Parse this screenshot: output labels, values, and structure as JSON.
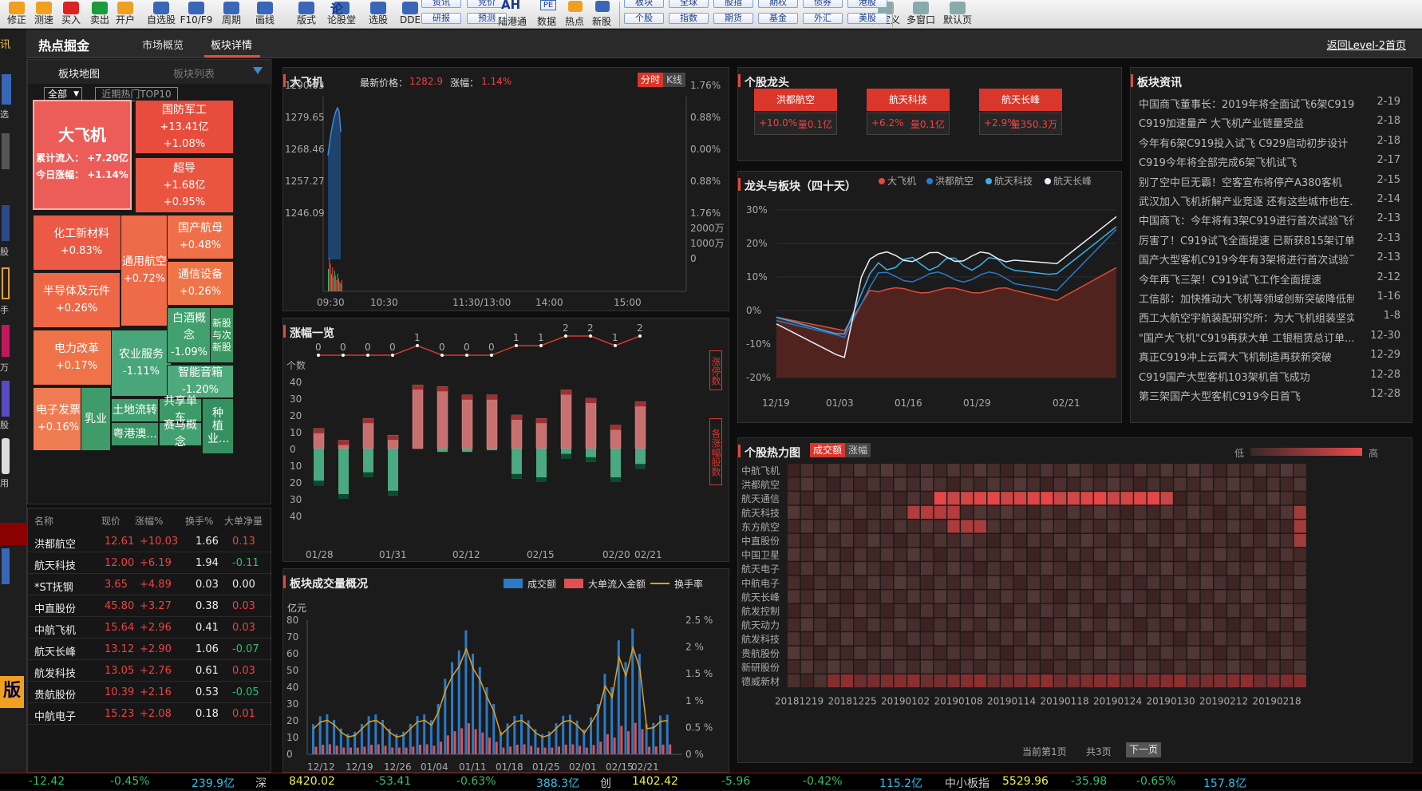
{
  "toolbar": {
    "items": [
      "修正",
      "测速",
      "买入",
      "卖出",
      "开户",
      "自选股",
      "F10/F9",
      "周期",
      "画线",
      "版式",
      "论股堂",
      "选股",
      "DDE",
      "研报",
      "预测",
      "陆港通",
      "数据",
      "热点",
      "新股",
      "个股",
      "指数",
      "期货",
      "基金",
      "外汇",
      "美股",
      "自定义",
      "多窗口",
      "默认页"
    ],
    "top_row": [
      "资讯",
      "竞价",
      "板块",
      "全球",
      "股指",
      "期权",
      "债券",
      "港股"
    ],
    "ah_label": "AH",
    "pe_label": "PE",
    "lun_label": "论"
  },
  "left_strip": [
    "讯",
    "选",
    "股",
    "手",
    "万",
    "股",
    "用",
    "版"
  ],
  "header": {
    "title": "热点掘金",
    "tabs": [
      "市场概览",
      "板块详情"
    ],
    "active_tab": "板块详情",
    "back_link": "返回Level-2首页"
  },
  "sector_map": {
    "tabs": [
      "板块地图",
      "板块列表"
    ],
    "filter_all": "全部",
    "filter_hot": "近期热门TOP10",
    "tiles": [
      {
        "name": "大飞机",
        "l1": "累计流入：  +7.20亿",
        "l2": "今日涨幅：  +1.14%"
      },
      {
        "name": "国防军工",
        "l1": "+13.41亿",
        "l2": "+1.08%"
      },
      {
        "name": "超导",
        "l1": "+1.68亿",
        "l2": "+0.95%"
      },
      {
        "name": "化工新材料",
        "l1": "+0.83%"
      },
      {
        "name": "通用航空",
        "l1": "+0.72%"
      },
      {
        "name": "国产航母",
        "l1": "+0.48%"
      },
      {
        "name": "通信设备",
        "l1": "+0.26%"
      },
      {
        "name": "半导体及元件",
        "l1": "+0.26%"
      },
      {
        "name": "电力改革",
        "l1": "+0.17%"
      },
      {
        "name": "农业服务",
        "l1": "-1.11%"
      },
      {
        "name": "白酒概念",
        "l1": "-1.09%"
      },
      {
        "name": "新股与次新股",
        "l1": ""
      },
      {
        "name": "智能音箱",
        "l1": "-1.20%"
      },
      {
        "name": "电子发票",
        "l1": "+0.16%"
      },
      {
        "name": "乳业",
        "l1": ""
      },
      {
        "name": "土地流转",
        "l1": ""
      },
      {
        "name": "共享单车",
        "l1": ""
      },
      {
        "name": "种植业...",
        "l1": ""
      },
      {
        "name": "粤港澳...",
        "l1": ""
      },
      {
        "name": "赛马概念",
        "l1": ""
      }
    ]
  },
  "stock_table": {
    "headers": [
      "名称",
      "现价",
      "涨幅%",
      "换手%",
      "大单净量"
    ],
    "rows": [
      [
        "洪都航空",
        "12.61",
        "+10.03",
        "1.66",
        "0.13"
      ],
      [
        "航天科技",
        "12.00",
        "+6.19",
        "1.94",
        "-0.11"
      ],
      [
        "*ST抚钢",
        "3.65",
        "+4.89",
        "0.03",
        "0.00"
      ],
      [
        "中直股份",
        "45.80",
        "+3.27",
        "0.38",
        "0.03"
      ],
      [
        "中航飞机",
        "15.64",
        "+2.96",
        "0.41",
        "0.03"
      ],
      [
        "航天长峰",
        "13.12",
        "+2.90",
        "1.06",
        "-0.07"
      ],
      [
        "航发科技",
        "13.05",
        "+2.76",
        "0.61",
        "0.03"
      ],
      [
        "贵航股份",
        "10.39",
        "+2.16",
        "0.53",
        "-0.05"
      ],
      [
        "中航电子",
        "15.23",
        "+2.08",
        "0.18",
        "0.01"
      ]
    ]
  },
  "intraday": {
    "name": "大飞机",
    "price_label": "最新价格：",
    "price": "1282.9",
    "chg_label": "涨幅：",
    "chg": "1.14%",
    "tabs": [
      "分时",
      "K线"
    ],
    "y_left": [
      "1290.83",
      "1279.65",
      "1268.46",
      "1257.27",
      "1246.09"
    ],
    "y_right": [
      "1.76%",
      "0.88%",
      "0.00%",
      "0.88%",
      "1.76%"
    ],
    "vol_labels": [
      "2000万",
      "1000万",
      "0"
    ],
    "x": [
      "09:30",
      "10:30",
      "11:30/13:00",
      "14:00",
      "15:00"
    ]
  },
  "rise_chart": {
    "title": "涨幅一览",
    "ylabel": "个数",
    "side1": "涨停数",
    "side2": "各涨幅股数",
    "limit_counts": [
      0,
      0,
      0,
      0,
      1,
      0,
      0,
      0,
      1,
      1,
      2,
      2,
      1,
      2
    ],
    "up": [
      12,
      5,
      18,
      8,
      38,
      37,
      32,
      32,
      20,
      18,
      35,
      30,
      14,
      28
    ],
    "down": [
      -22,
      -30,
      -17,
      -28,
      0,
      -2,
      -2,
      -1,
      -18,
      -20,
      -6,
      -8,
      -20,
      -12
    ],
    "yticks": [
      "40",
      "30",
      "20",
      "10",
      "0",
      "10",
      "20",
      "30",
      "40"
    ],
    "x": [
      "01/28",
      "01/31",
      "02/12",
      "02/15",
      "02/20",
      "02/21"
    ]
  },
  "volume_chart": {
    "title": "板块成交量概况",
    "unit": "亿元",
    "legend": [
      "成交额",
      "大单流入金额",
      "换手率"
    ],
    "yticks": [
      "80",
      "70",
      "60",
      "50",
      "40",
      "30",
      "20",
      "10",
      "0"
    ],
    "y2": [
      "2.5 %",
      "2 %",
      "1.5 %",
      "1 %",
      "0.5 %",
      "0 %"
    ],
    "x": [
      "12/12",
      "12/19",
      "12/26",
      "01/04",
      "01/11",
      "01/18",
      "01/25",
      "02/01",
      "02/15",
      "02/21"
    ]
  },
  "leaders": {
    "title": "个股龙头",
    "items": [
      {
        "name": "洪都航空",
        "chg": "+10.0%",
        "vol": "量0.1亿"
      },
      {
        "name": "航天科技",
        "chg": "+6.2%",
        "vol": "量0.1亿"
      },
      {
        "name": "航天长峰",
        "chg": "+2.9%",
        "vol": "量350.3万"
      }
    ]
  },
  "compare_chart": {
    "title": "龙头与板块（四十天）",
    "legend": [
      "大飞机",
      "洪都航空",
      "航天科技",
      "航天长峰"
    ],
    "yticks": [
      "30%",
      "20%",
      "10%",
      "0%",
      "-10%",
      "-20%"
    ],
    "x": [
      "12/19",
      "01/03",
      "01/16",
      "01/29",
      "02/21"
    ]
  },
  "news": {
    "title": "板块资讯",
    "items": [
      [
        "中国商飞董事长：2019年将全面试飞6架C919...",
        "2-19"
      ],
      [
        "C919加速量产 大飞机产业链量受益",
        "2-18"
      ],
      [
        "今年有6架C919投入试飞 C929启动初步设计",
        "2-18"
      ],
      [
        "C919今年将全部完成6架飞机试飞",
        "2-17"
      ],
      [
        "别了空中巨无霸！空客宣布将停产A380客机",
        "2-15"
      ],
      [
        "武汉加入飞机折解产业竞逐 还有这些城市也在...",
        "2-14"
      ],
      [
        "中国商飞：今年将有3架C919进行首次试验飞行...",
        "2-13"
      ],
      [
        "厉害了！C919试飞全面提速 已新获815架订单...",
        "2-13"
      ],
      [
        "国产大型客机C919今年有3架将进行首次试验飞...",
        "2-13"
      ],
      [
        "今年再飞三架！C919试飞工作全面提速",
        "2-12"
      ],
      [
        "工信部：加快推动大飞机等领域创新突破降低制...",
        "1-16"
      ],
      [
        "西工大航空宇航装配研究所：为大飞机组装坚实...",
        "1-8"
      ],
      [
        "\"国产大飞机\"C919再获大单 工银租赁总订单...",
        "12-30"
      ],
      [
        "真正C919冲上云霄大飞机制造再获新突破",
        "12-29"
      ],
      [
        "C919国产大型客机103架机首飞成功",
        "12-28"
      ],
      [
        "第三架国产大型客机C919今日首飞",
        "12-28"
      ]
    ]
  },
  "heatmap": {
    "title": "个股热力图",
    "tabs": [
      "成交额",
      "涨幅"
    ],
    "low": "低",
    "high": "高",
    "rows": [
      "中航飞机",
      "洪都航空",
      "航天通信",
      "航天科技",
      "东方航空",
      "中直股份",
      "中国卫星",
      "航天电子",
      "中航电子",
      "航天长峰",
      "航发控制",
      "航天动力",
      "航发科技",
      "贵航股份",
      "新研股份",
      "德威新材"
    ],
    "x": [
      "20181219",
      "20181225",
      "20190102",
      "20190108",
      "20190114",
      "20190118",
      "20190124",
      "20190130",
      "20190212",
      "20190218"
    ],
    "pager": {
      "prev": "当前第1页",
      "total": "共3页",
      "next": "下一页"
    }
  },
  "status": [
    "-12.42",
    "-0.45%",
    "239.9亿",
    "深",
    "8420.02",
    "-53.41",
    "-0.63%",
    "388.3亿",
    "创",
    "1402.42",
    "-5.96",
    "-0.42%",
    "115.2亿",
    "中小板指",
    "5529.96",
    "-35.98",
    "-0.65%",
    "157.8亿"
  ]
}
